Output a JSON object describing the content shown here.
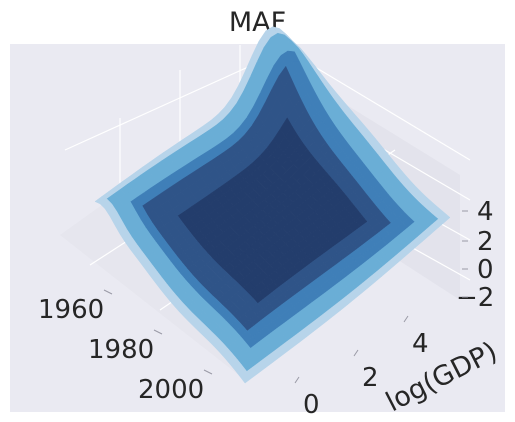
{
  "chart_data": {
    "type": "surface3d",
    "title": "MAF",
    "xlabel": "",
    "ylabel": "log(GDP)",
    "zlabel": "",
    "x_ticks": [
      "1960",
      "1980",
      "2000"
    ],
    "y_ticks": [
      "0",
      "2",
      "4"
    ],
    "z_ticks": [
      "−2",
      "0",
      "2",
      "4"
    ],
    "xlim": [
      1955,
      2015
    ],
    "ylim": [
      -1.5,
      6.5
    ],
    "zlim": [
      -3,
      5
    ],
    "grid": true,
    "colormap": [
      "#b7d4ea",
      "#6aaed6",
      "#3f7fb8",
      "#2f5488",
      "#233d6c"
    ],
    "pane_color": "#eaeaf2"
  }
}
